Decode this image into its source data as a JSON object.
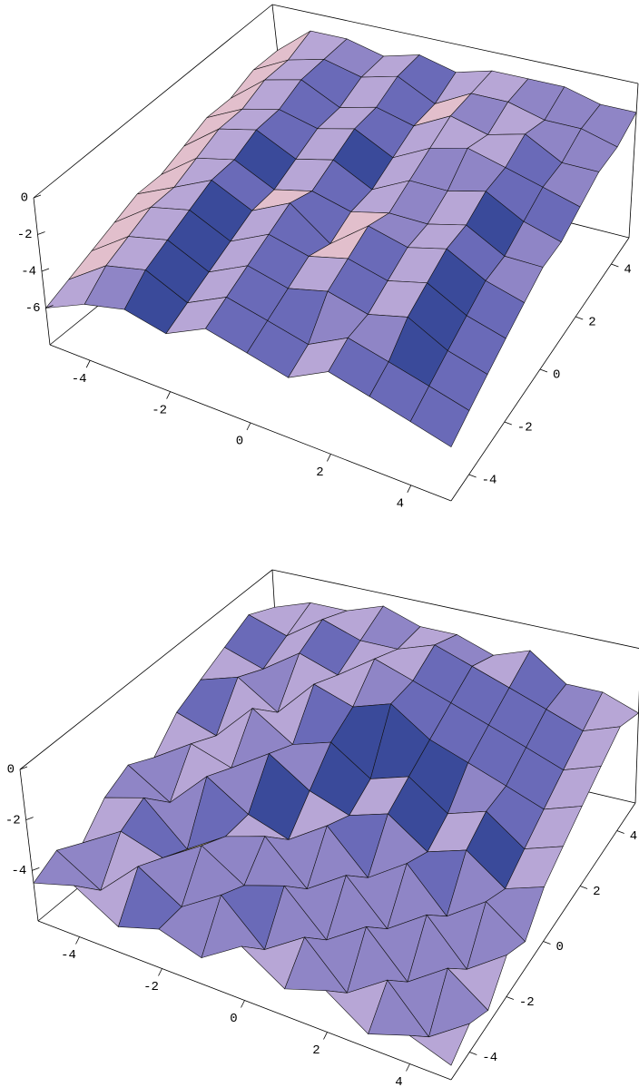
{
  "chart_data": [
    {
      "type": "surface",
      "x": [
        -5,
        -4,
        -3,
        -2,
        -1,
        0,
        1,
        2,
        3,
        4,
        5
      ],
      "y": [
        -5,
        -4,
        -3,
        -2,
        -1,
        0,
        1,
        2,
        3,
        4,
        5
      ],
      "z": [
        [
          -6,
          -5,
          -4.5,
          -5,
          -4,
          -4.5,
          -5,
          -4,
          -4.5,
          -5,
          -5.5
        ],
        [
          -5.5,
          -4,
          -3.5,
          -4.5,
          -3.5,
          -4,
          -4.5,
          -3.5,
          -4,
          -4.5,
          -5
        ],
        [
          -5,
          -3.5,
          -3,
          -4,
          -3,
          -3.5,
          -3,
          -3.5,
          -3,
          -4,
          -4.5
        ],
        [
          -4.5,
          -3,
          -2.5,
          -3.5,
          -2.5,
          -3,
          -2.5,
          -3,
          -2.5,
          -3.5,
          -4
        ],
        [
          -4,
          -3,
          -2,
          -3,
          -2,
          -3.5,
          -2,
          -2.5,
          -2,
          -3,
          -3.5
        ],
        [
          -4,
          -2.5,
          -2,
          -3,
          -2.5,
          -3,
          -2.5,
          -2.5,
          -2,
          -3,
          -3
        ],
        [
          -3.5,
          -2,
          -1.5,
          -2.5,
          -2,
          -3,
          -2,
          -2,
          -1.5,
          -2.5,
          -3
        ],
        [
          -3,
          -2,
          -1.5,
          -2,
          -1.5,
          -2.5,
          -1.5,
          -1,
          -1.5,
          -2,
          -2.5
        ],
        [
          -3,
          -1.5,
          -1,
          -2,
          -1.5,
          -2,
          -1,
          -1.5,
          -1,
          -2,
          -2
        ],
        [
          -2.5,
          -1.5,
          -1,
          -1.5,
          -1,
          -2,
          -1,
          -1,
          -1.5,
          -1.5,
          -2
        ],
        [
          -2.5,
          -1,
          -1,
          -1.5,
          -1,
          -1.5,
          -1,
          -1,
          -1,
          -1.5,
          -1.5
        ]
      ],
      "xlim": [
        -5,
        5
      ],
      "ylim": [
        -5,
        5
      ],
      "zlim": [
        -8,
        0
      ],
      "xticks": [
        -4,
        -2,
        0,
        2,
        4
      ],
      "yticks": [
        -4,
        -2,
        0,
        2,
        4
      ],
      "zticks": [
        -6,
        -4,
        -2,
        0
      ],
      "colors": [
        "#3a4a9a",
        "#6a6ab8",
        "#8f85c6",
        "#b7a6d6",
        "#e2bfcc",
        "#f3dca8"
      ]
    },
    {
      "type": "surface",
      "x": [
        -5,
        -4,
        -3,
        -2,
        -1,
        0,
        1,
        2,
        3,
        4,
        5
      ],
      "y": [
        -5,
        -4,
        -3,
        -2,
        -1,
        0,
        1,
        2,
        3,
        4,
        5
      ],
      "z": [
        [
          -4.5,
          -4,
          -5,
          -4.5,
          -5,
          -4,
          -5,
          -4.5,
          -5.5,
          -5,
          -5.5
        ],
        [
          -4,
          -5,
          -3.5,
          -4.5,
          -3.5,
          -5,
          -4,
          -5.5,
          -4.5,
          -6,
          -5
        ],
        [
          -4.5,
          -3.5,
          -4,
          -3,
          -4,
          -3.5,
          -5,
          -4,
          -5.5,
          -4.5,
          -5.5
        ],
        [
          -3.5,
          -3,
          -4.5,
          -3.5,
          -3,
          -4.5,
          -3.5,
          -5,
          -4,
          -5.5,
          -4.5
        ],
        [
          -3,
          -4,
          -2.5,
          -3.5,
          -4,
          -3,
          -4.5,
          -3.5,
          -5,
          -4,
          -5
        ],
        [
          -3.5,
          -2.5,
          -3,
          -2,
          -3,
          -3.5,
          -3,
          -4,
          -3.5,
          -4.5,
          -4
        ],
        [
          -2.5,
          -3,
          -1.5,
          -2.5,
          -2,
          -3,
          -2.5,
          -3.5,
          -3,
          -4,
          -3.5
        ],
        [
          -2,
          -1.5,
          -2.5,
          -1,
          -1.5,
          -1,
          -2,
          -2.5,
          -3,
          -3.5,
          -3
        ],
        [
          -1.5,
          -2,
          -1,
          -1.5,
          -0.5,
          -1,
          -1.5,
          -2,
          -2.5,
          -3,
          -2.5
        ],
        [
          -1,
          -1.5,
          -0.5,
          -1,
          -1,
          -0.5,
          -1,
          -1.5,
          -2,
          -2.5,
          -2
        ],
        [
          -1.5,
          -1,
          -1,
          -0.5,
          -1,
          -1,
          -1.5,
          -1,
          -2,
          -2,
          -2.5
        ]
      ],
      "xlim": [
        -5,
        5
      ],
      "ylim": [
        -5,
        5
      ],
      "zlim": [
        -6,
        0
      ],
      "xticks": [
        -4,
        -2,
        0,
        2,
        4
      ],
      "yticks": [
        -4,
        -2,
        0,
        2,
        4
      ],
      "zticks": [
        -4,
        -2,
        0
      ],
      "colors": [
        "#3a4a9a",
        "#6a6ab8",
        "#8f85c6",
        "#b7a6d6",
        "#e2bfcc",
        "#f3dca8"
      ]
    }
  ]
}
